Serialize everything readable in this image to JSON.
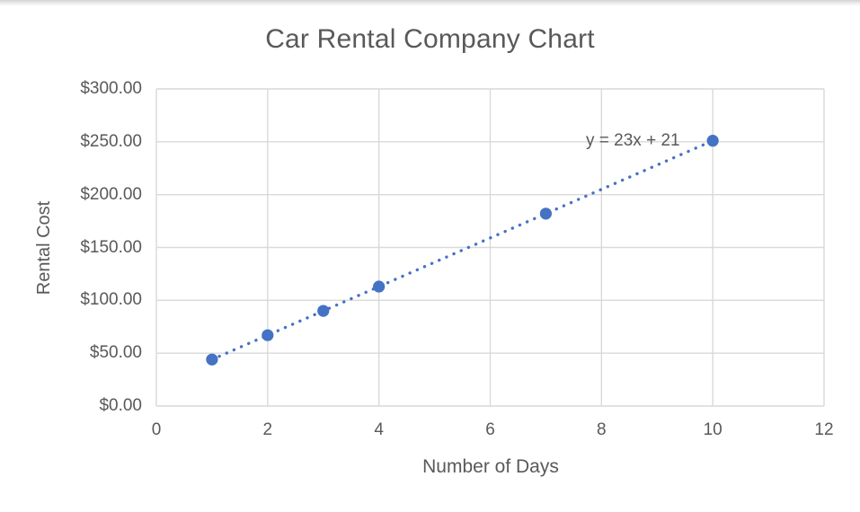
{
  "chart_data": {
    "type": "scatter",
    "title": "Car Rental Company Chart",
    "xlabel": "Number of Days",
    "ylabel": "Rental Cost",
    "points": [
      {
        "x": 1,
        "y": 44
      },
      {
        "x": 2,
        "y": 67
      },
      {
        "x": 3,
        "y": 90
      },
      {
        "x": 4,
        "y": 113
      },
      {
        "x": 7,
        "y": 182
      },
      {
        "x": 10,
        "y": 251
      }
    ],
    "trendline": {
      "label": "y = 23x + 21",
      "slope": 23,
      "intercept": 21,
      "style": "dotted",
      "x_start": 1,
      "x_end": 10
    },
    "xlim": [
      0,
      12
    ],
    "ylim": [
      0,
      300
    ],
    "x_ticks": [
      {
        "label": "0",
        "value": 0
      },
      {
        "label": "2",
        "value": 2
      },
      {
        "label": "4",
        "value": 4
      },
      {
        "label": "6",
        "value": 6
      },
      {
        "label": "8",
        "value": 8
      },
      {
        "label": "10",
        "value": 10
      },
      {
        "label": "12",
        "value": 12
      }
    ],
    "y_ticks": [
      {
        "label": "$0.00",
        "value": 0
      },
      {
        "label": "$50.00",
        "value": 50
      },
      {
        "label": "$100.00",
        "value": 100
      },
      {
        "label": "$150.00",
        "value": 150
      },
      {
        "label": "$200.00",
        "value": 200
      },
      {
        "label": "$250.00",
        "value": 250
      },
      {
        "label": "$300.00",
        "value": 300
      }
    ],
    "grid": true,
    "legend": "none",
    "colors": {
      "marker": "#4472C4",
      "trendline": "#4472C4",
      "gridline": "#D9D9D9",
      "text": "#595959"
    }
  }
}
